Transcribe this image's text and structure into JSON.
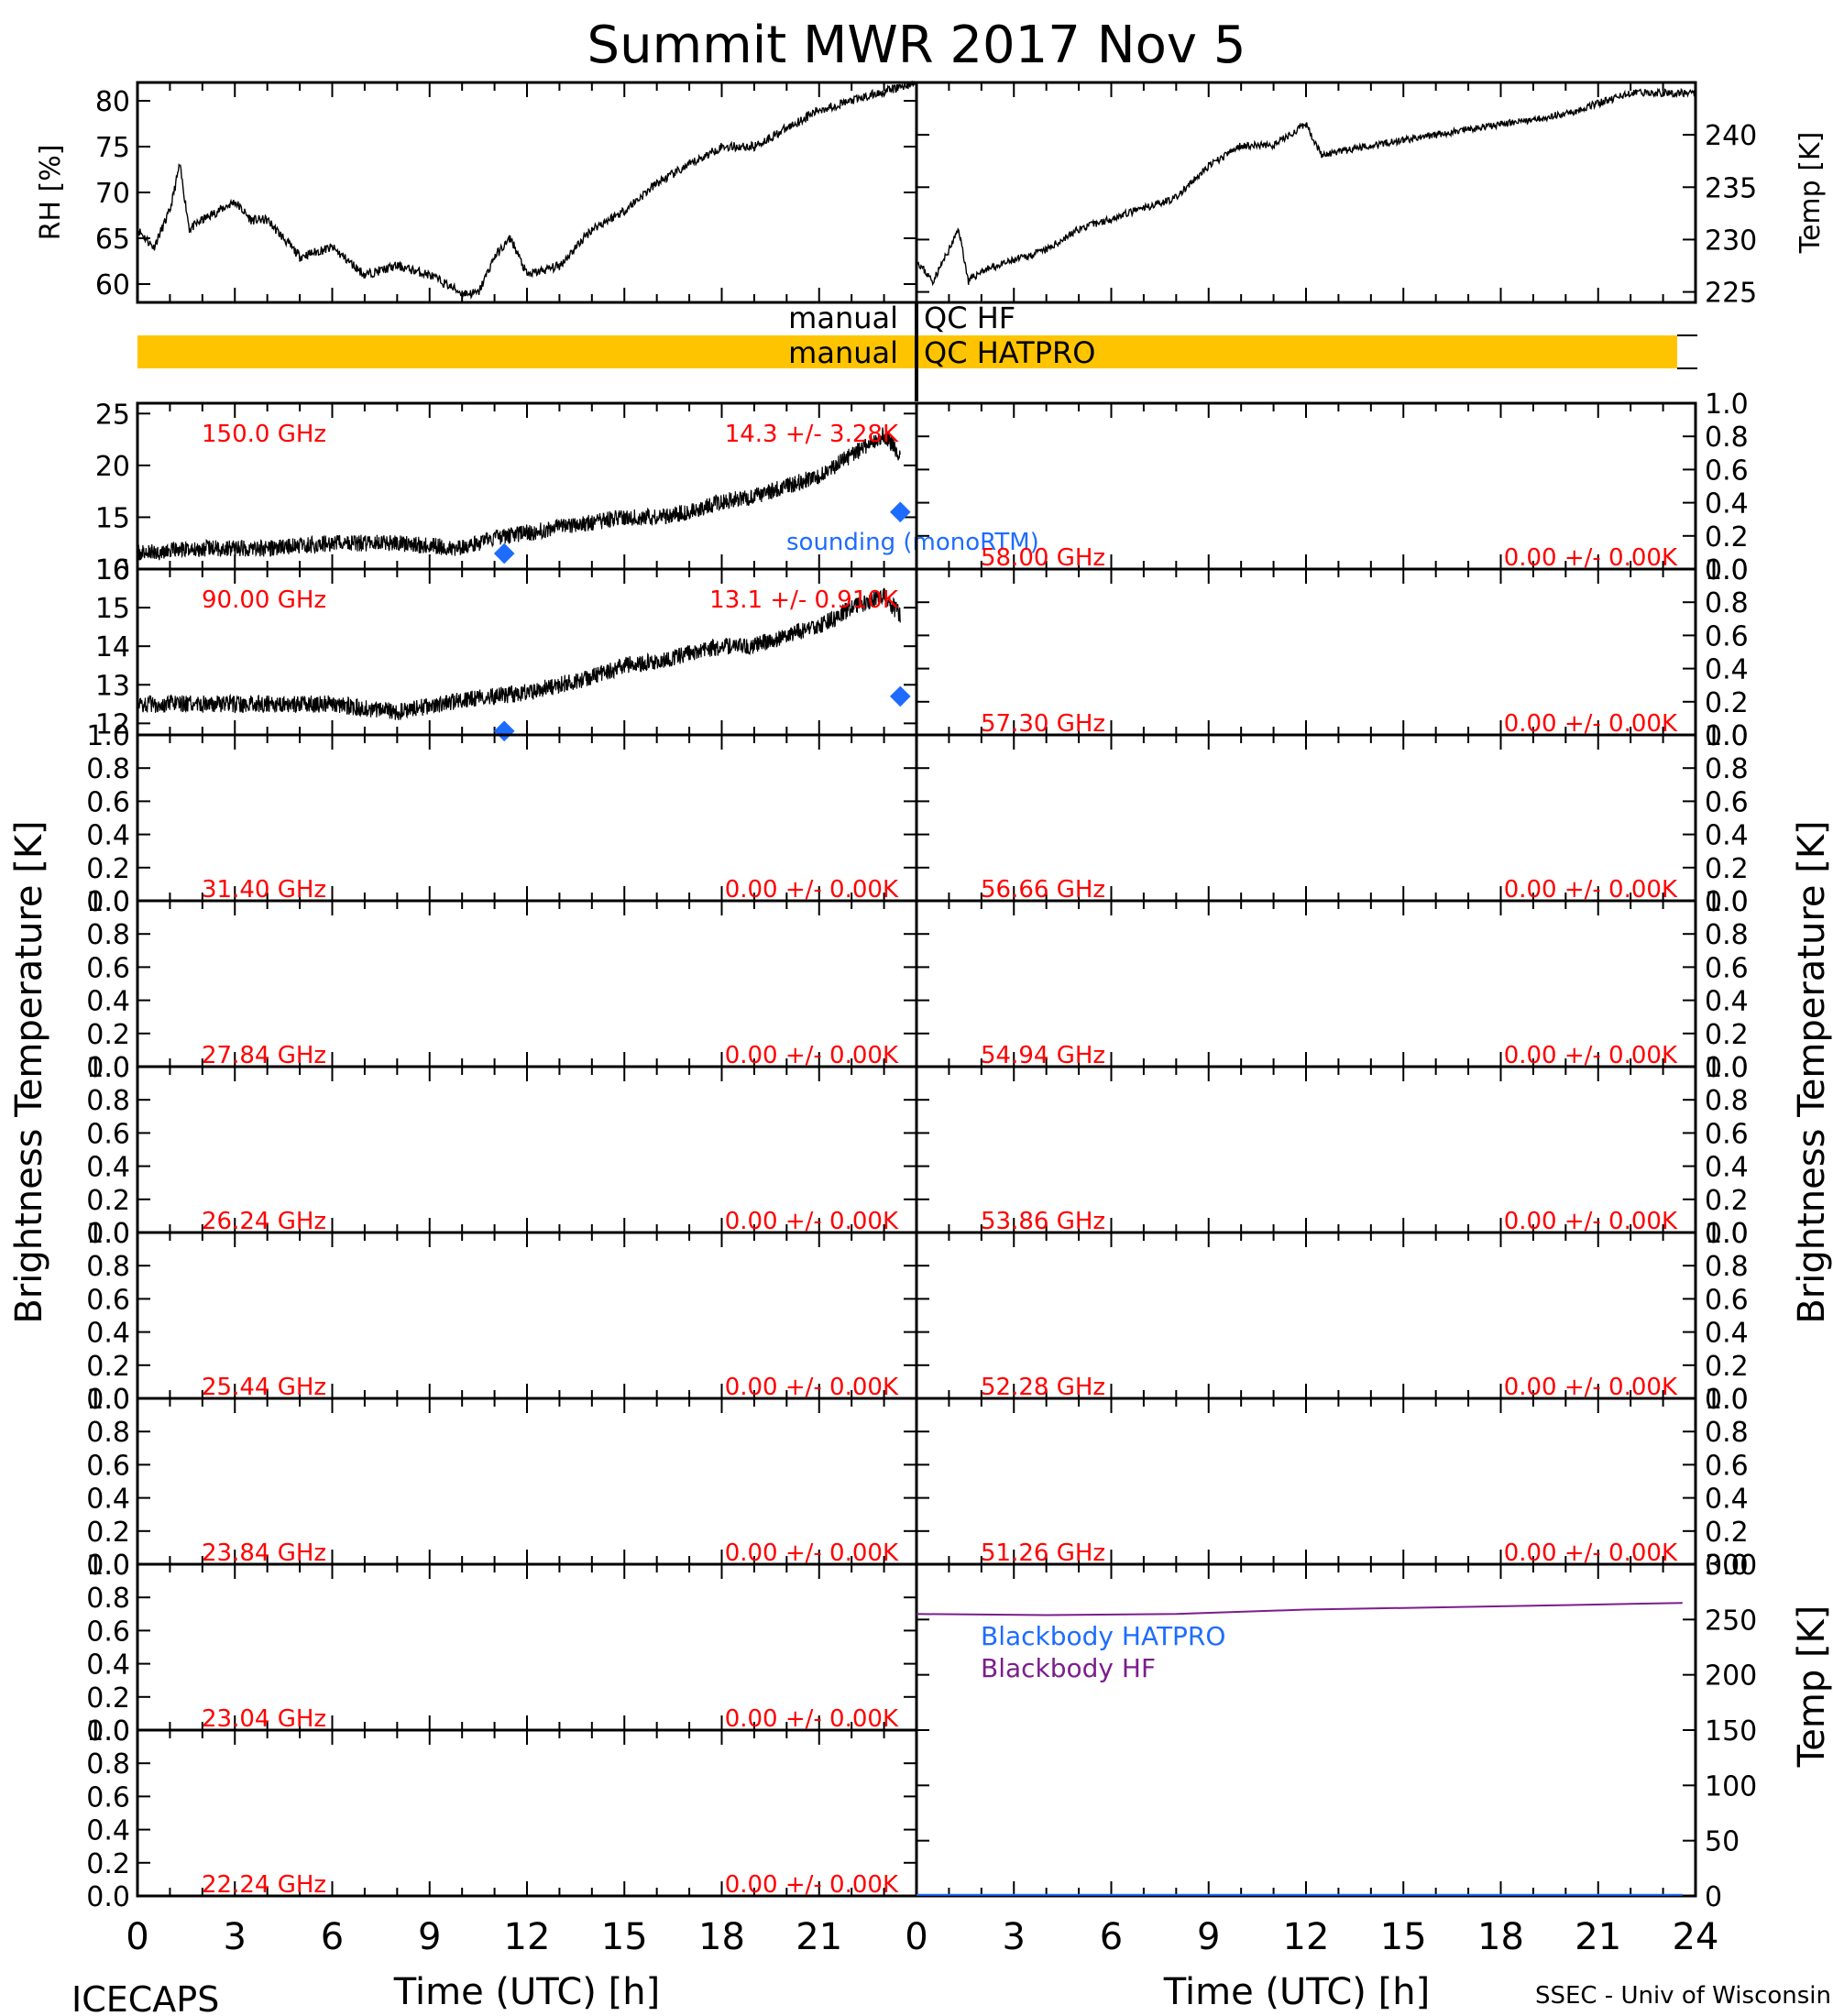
{
  "title": "Summit MWR 2017 Nov  5",
  "footer": {
    "left": "ICECAPS",
    "right": "SSEC - Univ of Wisconsin",
    "xlabel": "Time (UTC) [h]"
  },
  "axis_labels": {
    "rh": "RH [%]",
    "temp": "Temp [K]",
    "tb": "Brightness Temperature [K]",
    "bb_temp": "Temp [K]"
  },
  "qc": {
    "hf_left": "manual",
    "hf_right": "QC HF",
    "hatpro_left": "manual",
    "hatpro_right": "QC HATPRO"
  },
  "colors": {
    "label_red": "#ff0000",
    "sounding_blue": "#1e6cff",
    "qc_orange": "#ffc400",
    "bb_purple": "#7b1e8c",
    "bb_blue": "#1e6cff"
  },
  "chart_data": [
    {
      "id": "rh",
      "type": "line",
      "ylabel": "RH [%]",
      "xlim": [
        0,
        24
      ],
      "ylim": [
        58,
        82
      ],
      "yticks": [
        60,
        65,
        70,
        75,
        80
      ],
      "x": [
        0,
        0.5,
        1,
        1.3,
        1.6,
        2,
        2.5,
        3,
        3.5,
        4,
        5,
        6,
        7,
        8,
        9,
        10,
        10.5,
        11,
        11.5,
        12,
        13,
        14,
        15,
        16,
        17,
        18,
        19,
        20,
        21,
        22,
        23,
        24
      ],
      "values": [
        66,
        64,
        68,
        73,
        66,
        67,
        68,
        69,
        67,
        67,
        63,
        64,
        61,
        62,
        61,
        59,
        59,
        63,
        65,
        61,
        62,
        66,
        68,
        71,
        73,
        75,
        75,
        77,
        79,
        80,
        81,
        82
      ]
    },
    {
      "id": "temp",
      "type": "line",
      "ylabel": "Temp [K]",
      "xlim": [
        0,
        24
      ],
      "ylim": [
        224,
        245
      ],
      "yticks": [
        225,
        230,
        235,
        240
      ],
      "x": [
        0,
        0.5,
        1,
        1.3,
        1.6,
        2,
        3,
        4,
        5,
        6,
        7,
        8,
        9,
        10,
        11,
        12,
        12.5,
        14,
        16,
        18,
        20,
        21,
        22,
        24
      ],
      "values": [
        228,
        226,
        229,
        231,
        226,
        227,
        228,
        229,
        231,
        232,
        233,
        234,
        237,
        239,
        239,
        241,
        238,
        239,
        240,
        241,
        242,
        243,
        244,
        244
      ]
    },
    {
      "id": "150ghz",
      "type": "line",
      "label": "150.0 GHz",
      "stat": "14.3 +/-  3.28K",
      "ylim": [
        10,
        26
      ],
      "yticks": [
        10,
        15,
        20,
        25
      ],
      "x": [
        0,
        2,
        4,
        6,
        8,
        10,
        11,
        12,
        13,
        14,
        15,
        16,
        17,
        18,
        19,
        20,
        21,
        22,
        23,
        23.5
      ],
      "values": [
        11.5,
        12,
        12,
        12.5,
        12.5,
        12,
        13,
        13.5,
        14,
        14.5,
        15,
        15,
        15.5,
        16.5,
        17,
        18,
        19,
        21,
        23,
        21
      ],
      "sounding": [
        {
          "x": 11.3,
          "y": 11.5
        },
        {
          "x": 23.5,
          "y": 15.5
        }
      ],
      "sounding_label": "sounding (monoRTM)"
    },
    {
      "id": "90ghz",
      "type": "line",
      "label": "90.00 GHz",
      "stat": "13.1 +/- 0.910K",
      "ylim": [
        11.7,
        16
      ],
      "yticks": [
        12,
        13,
        14,
        15,
        16
      ],
      "x": [
        0,
        2,
        4,
        6,
        8,
        10,
        11,
        12,
        13,
        14,
        15,
        16,
        17,
        18,
        19,
        20,
        21,
        22,
        23,
        23.5
      ],
      "values": [
        12.5,
        12.5,
        12.5,
        12.5,
        12.3,
        12.6,
        12.7,
        12.8,
        13,
        13.2,
        13.5,
        13.6,
        13.8,
        14,
        14,
        14.3,
        14.5,
        15,
        15.3,
        14.8
      ],
      "sounding": [
        {
          "x": 11.3,
          "y": 11.8
        },
        {
          "x": 23.5,
          "y": 12.7
        }
      ]
    },
    {
      "id": "58ghz",
      "type": "line",
      "label": "58.00 GHz",
      "stat": "0.00 +/- 0.00K",
      "ylim": [
        0,
        1
      ]
    },
    {
      "id": "57ghz",
      "type": "line",
      "label": "57.30 GHz",
      "stat": "0.00 +/- 0.00K",
      "ylim": [
        0,
        1
      ]
    },
    {
      "id": "31ghz",
      "type": "line",
      "label": "31.40 GHz",
      "stat": "0.00 +/- 0.00K",
      "ylim": [
        0,
        1
      ]
    },
    {
      "id": "56ghz",
      "type": "line",
      "label": "56.66 GHz",
      "stat": "0.00 +/- 0.00K",
      "ylim": [
        0,
        1
      ]
    },
    {
      "id": "27ghz",
      "type": "line",
      "label": "27.84 GHz",
      "stat": "0.00 +/- 0.00K",
      "ylim": [
        0,
        1
      ]
    },
    {
      "id": "54ghz",
      "type": "line",
      "label": "54.94 GHz",
      "stat": "0.00 +/- 0.00K",
      "ylim": [
        0,
        1
      ]
    },
    {
      "id": "26ghz",
      "type": "line",
      "label": "26.24 GHz",
      "stat": "0.00 +/- 0.00K",
      "ylim": [
        0,
        1
      ]
    },
    {
      "id": "53ghz",
      "type": "line",
      "label": "53.86 GHz",
      "stat": "0.00 +/- 0.00K",
      "ylim": [
        0,
        1
      ]
    },
    {
      "id": "25ghz",
      "type": "line",
      "label": "25.44 GHz",
      "stat": "0.00 +/- 0.00K",
      "ylim": [
        0,
        1
      ]
    },
    {
      "id": "52ghz",
      "type": "line",
      "label": "52.28 GHz",
      "stat": "0.00 +/- 0.00K",
      "ylim": [
        0,
        1
      ]
    },
    {
      "id": "23_84ghz",
      "type": "line",
      "label": "23.84 GHz",
      "stat": "0.00 +/- 0.00K",
      "ylim": [
        0,
        1
      ]
    },
    {
      "id": "51ghz",
      "type": "line",
      "label": "51.26 GHz",
      "stat": "0.00 +/- 0.00K",
      "ylim": [
        0,
        1
      ]
    },
    {
      "id": "23_04ghz",
      "type": "line",
      "label": "23.04 GHz",
      "stat": "0.00 +/- 0.00K",
      "ylim": [
        0,
        1
      ]
    },
    {
      "id": "22ghz",
      "type": "line",
      "label": "22.24 GHz",
      "stat": "0.00 +/- 0.00K",
      "ylim": [
        0,
        1
      ]
    },
    {
      "id": "blackbody",
      "type": "line",
      "ylabel": "Temp [K]",
      "ylim": [
        0,
        300
      ],
      "yticks": [
        0,
        50,
        100,
        150,
        200,
        250,
        300
      ],
      "series": [
        {
          "name": "Blackbody HATPRO",
          "x": [
            0,
            23.6
          ],
          "values": [
            1,
            1
          ]
        },
        {
          "name": "Blackbody HF",
          "x": [
            0,
            4,
            8,
            12,
            16,
            20,
            23.6
          ],
          "values": [
            255,
            254,
            255,
            259,
            261,
            263,
            265
          ]
        }
      ]
    }
  ],
  "x_ticks": [
    "0",
    "3",
    "6",
    "9",
    "12",
    "15",
    "18",
    "21",
    "24"
  ],
  "unit_ticks": [
    "0.0",
    "0.2",
    "0.4",
    "0.6",
    "0.8",
    "1.0"
  ]
}
